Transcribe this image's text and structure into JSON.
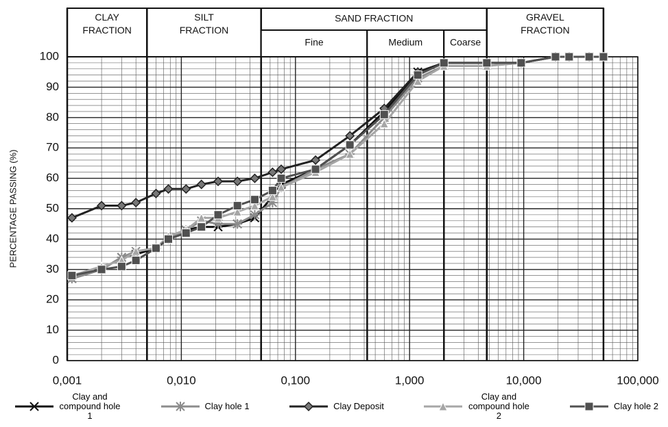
{
  "chart_data": {
    "type": "line",
    "y_label": "PERCENTAGE PASSING (%)",
    "x_scale": "log",
    "xlim": [
      0.001,
      100
    ],
    "xticks": [
      {
        "value": 0.001,
        "label": "0,001"
      },
      {
        "value": 0.01,
        "label": "0,010"
      },
      {
        "value": 0.1,
        "label": "0,100"
      },
      {
        "value": 1,
        "label": "1,000"
      },
      {
        "value": 10,
        "label": "10,000"
      },
      {
        "value": 100,
        "label": "100,000"
      }
    ],
    "ylim": [
      0,
      100
    ],
    "yticks": [
      0,
      10,
      20,
      30,
      40,
      50,
      60,
      70,
      80,
      90,
      100
    ],
    "grid": true,
    "zones": [
      {
        "label": [
          "CLAY",
          "FRACTION"
        ],
        "from": 0.001,
        "to": 0.005
      },
      {
        "label": [
          "SILT",
          "FRACTION"
        ],
        "from": 0.005,
        "to": 0.05
      },
      {
        "label": [
          "SAND FRACTION"
        ],
        "from": 0.05,
        "to": 4.75,
        "parts": [
          {
            "label": "Fine",
            "from": 0.05,
            "to": 0.425
          },
          {
            "label": "Medium",
            "from": 0.425,
            "to": 2
          },
          {
            "label": "Coarse",
            "from": 2,
            "to": 4.75
          }
        ]
      },
      {
        "label": [
          "GRAVEL",
          "FRACTION"
        ],
        "from": 4.75,
        "to": 50
      }
    ],
    "x": [
      0.0011,
      0.002,
      0.003,
      0.004,
      0.006,
      0.0077,
      0.011,
      0.015,
      0.021,
      0.031,
      0.044,
      0.063,
      0.075,
      0.15,
      0.3,
      0.6,
      1.18,
      2.0,
      4.75,
      9.5,
      19,
      25,
      37.5,
      50
    ],
    "series": [
      {
        "name": "Clay and compound hole 1",
        "color": "#111111",
        "marker": "x",
        "values": [
          27,
          30,
          34,
          35,
          37,
          40,
          43,
          44,
          44,
          45,
          47,
          54,
          58,
          63,
          71,
          82,
          95,
          98,
          98,
          98,
          100,
          100,
          100,
          100
        ]
      },
      {
        "name": "Clay hole 1",
        "color": "#8c8c8c",
        "marker": "asterisk",
        "values": [
          27,
          30,
          34,
          36,
          37,
          40,
          43,
          46,
          45,
          45,
          48,
          52,
          57,
          63,
          68,
          80,
          93,
          97,
          97,
          98,
          100,
          100,
          100,
          100
        ]
      },
      {
        "name": "Clay Deposit",
        "color": "#222222",
        "marker": "diamond",
        "values": [
          47,
          51,
          51,
          52,
          55,
          56.5,
          56.5,
          58,
          59,
          59,
          60,
          62,
          63,
          66,
          74,
          83,
          95,
          98,
          98,
          98,
          100,
          100,
          100,
          100
        ]
      },
      {
        "name": "Clay and compound hole 2",
        "color": "#a6a6a6",
        "marker": "triangle",
        "values": [
          28,
          31,
          33,
          36,
          37,
          41,
          43,
          47,
          47,
          49,
          51,
          54,
          57,
          62,
          68,
          78,
          92,
          97,
          97,
          98,
          100,
          100,
          100,
          100
        ]
      },
      {
        "name": "Clay hole 2",
        "color": "#505050",
        "marker": "square",
        "values": [
          28,
          30,
          31,
          33,
          37,
          40,
          42,
          44,
          48,
          51,
          53,
          56,
          60,
          63,
          71,
          81,
          94,
          98,
          98,
          98,
          100,
          100,
          100,
          100
        ]
      }
    ]
  }
}
